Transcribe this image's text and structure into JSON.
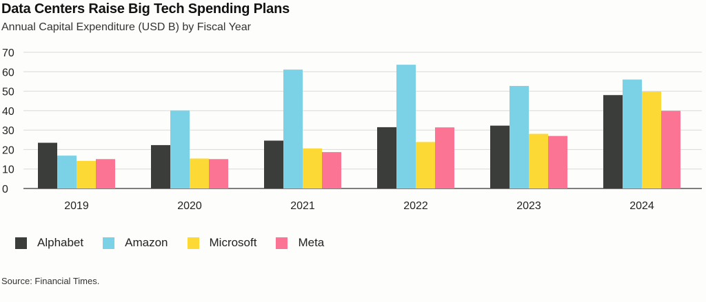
{
  "title": "Data Centers Raise Big Tech Spending Plans",
  "subtitle": "Annual Capital Expenditure (USD B) by Fiscal Year",
  "source": "Source: Financial Times.",
  "chart_data": {
    "type": "bar",
    "title": "Data Centers Raise Big Tech Spending Plans",
    "subtitle": "Annual Capital Expenditure (USD B) by Fiscal Year",
    "categories": [
      "2019",
      "2020",
      "2021",
      "2022",
      "2023",
      "2024"
    ],
    "series": [
      {
        "name": "Alphabet",
        "color": "#3b3d3a",
        "values": [
          23.5,
          22.3,
          24.6,
          31.5,
          32.3,
          48.0
        ]
      },
      {
        "name": "Amazon",
        "color": "#7bd2e6",
        "values": [
          16.9,
          40.1,
          61.1,
          63.6,
          52.7,
          56.0
        ]
      },
      {
        "name": "Microsoft",
        "color": "#fcd935",
        "values": [
          14.2,
          15.4,
          20.6,
          23.9,
          28.1,
          49.8
        ]
      },
      {
        "name": "Meta",
        "color": "#fb7493",
        "values": [
          15.1,
          15.1,
          18.7,
          31.4,
          27.0,
          39.9
        ]
      }
    ],
    "ylim": [
      0,
      70
    ],
    "yticks": [
      0,
      10,
      20,
      30,
      40,
      50,
      60,
      70
    ],
    "grid": true,
    "legend": "bottom-left",
    "xlabel": "",
    "ylabel": ""
  }
}
